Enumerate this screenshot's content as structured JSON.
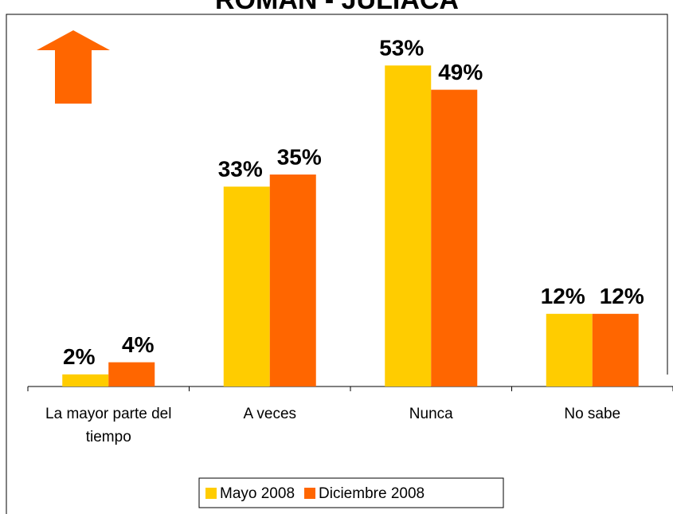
{
  "chart_data": {
    "type": "bar",
    "title": "ROMAN - JULIACA",
    "categories": [
      "La mayor parte del tiempo",
      "A veces",
      "Nunca",
      "No sabe"
    ],
    "series": [
      {
        "name": "Mayo 2008",
        "color": "#ffcc00",
        "values": [
          2,
          33,
          53,
          12
        ],
        "value_labels": [
          "2%",
          "33%",
          "53%",
          "12%"
        ]
      },
      {
        "name": "Diciembre 2008",
        "color": "#ff6600",
        "values": [
          4,
          35,
          49,
          12
        ],
        "value_labels": [
          "4%",
          "35%",
          "49%",
          "12%"
        ]
      }
    ],
    "ylim": [
      0,
      60
    ],
    "legend": "bottom"
  }
}
